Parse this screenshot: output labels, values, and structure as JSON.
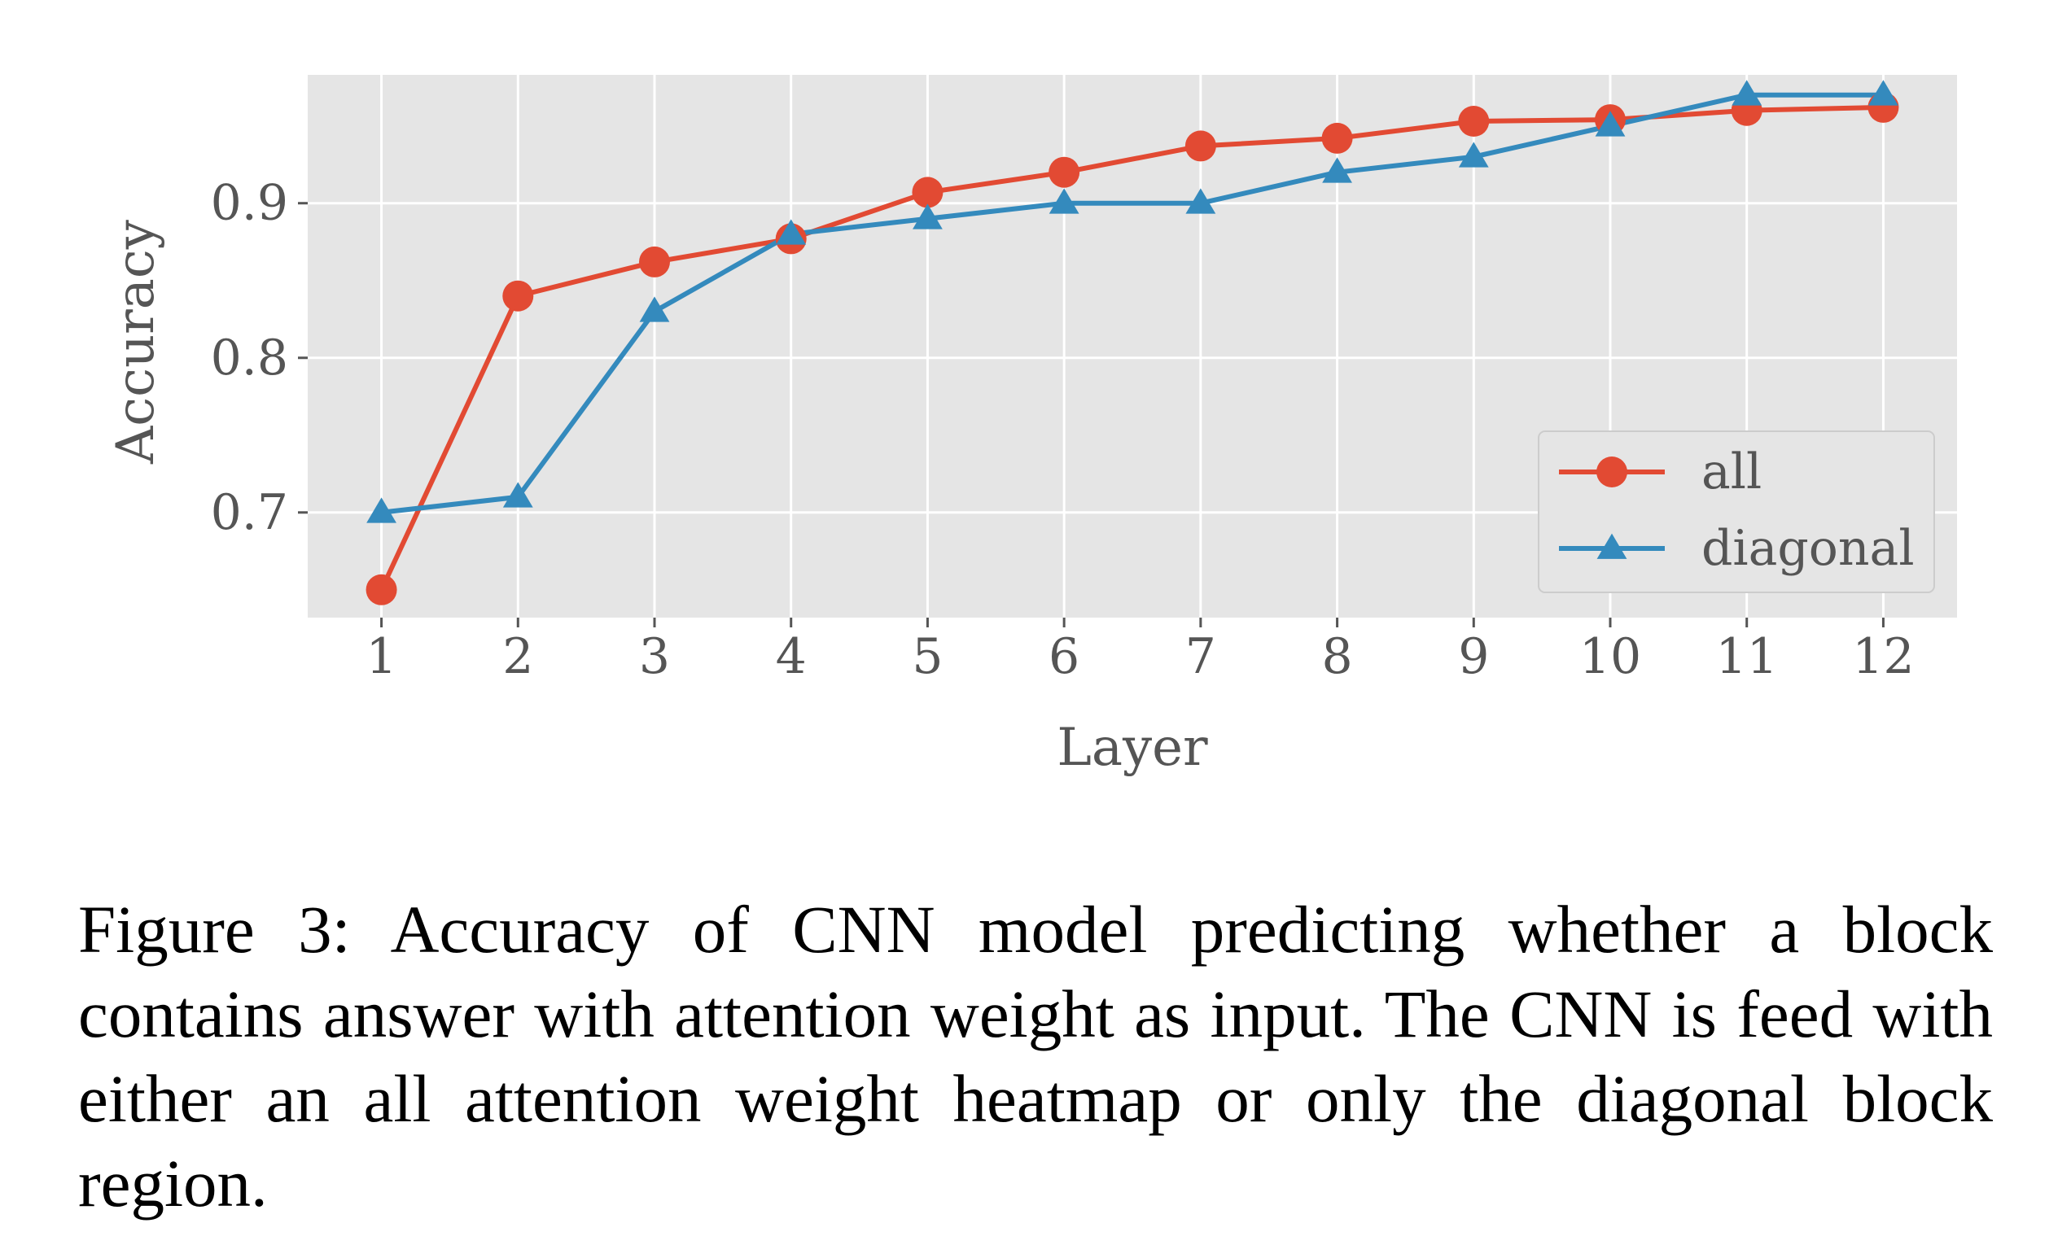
{
  "chart_data": {
    "type": "line",
    "title": "",
    "xlabel": "Layer",
    "ylabel": "Accuracy",
    "x": [
      1,
      2,
      3,
      4,
      5,
      6,
      7,
      8,
      9,
      10,
      11,
      12
    ],
    "xticks": [
      "1",
      "2",
      "3",
      "4",
      "5",
      "6",
      "7",
      "8",
      "9",
      "10",
      "11",
      "12"
    ],
    "yticks": [
      {
        "value": 0.7,
        "label": "0.7"
      },
      {
        "value": 0.8,
        "label": "0.8"
      },
      {
        "value": 0.9,
        "label": "0.9"
      }
    ],
    "xlim": [
      0.46,
      12.54
    ],
    "ylim": [
      0.632,
      0.983
    ],
    "grid": true,
    "legend_position": "center-right",
    "series": [
      {
        "name": "all",
        "color": "#E24A33",
        "marker": "circle",
        "values": [
          0.65,
          0.84,
          0.862,
          0.877,
          0.907,
          0.92,
          0.937,
          0.942,
          0.953,
          0.954,
          0.96,
          0.962
        ]
      },
      {
        "name": "diagonal",
        "color": "#348ABD",
        "marker": "triangle",
        "values": [
          0.7,
          0.71,
          0.83,
          0.88,
          0.89,
          0.9,
          0.9,
          0.92,
          0.93,
          0.95,
          0.97,
          0.97
        ]
      }
    ]
  },
  "caption": "Figure 3: Accuracy of CNN model predicting whether a block contains answer with attention weight as input. The CNN is feed with either an all attention weight heatmap or only the diagonal block region."
}
